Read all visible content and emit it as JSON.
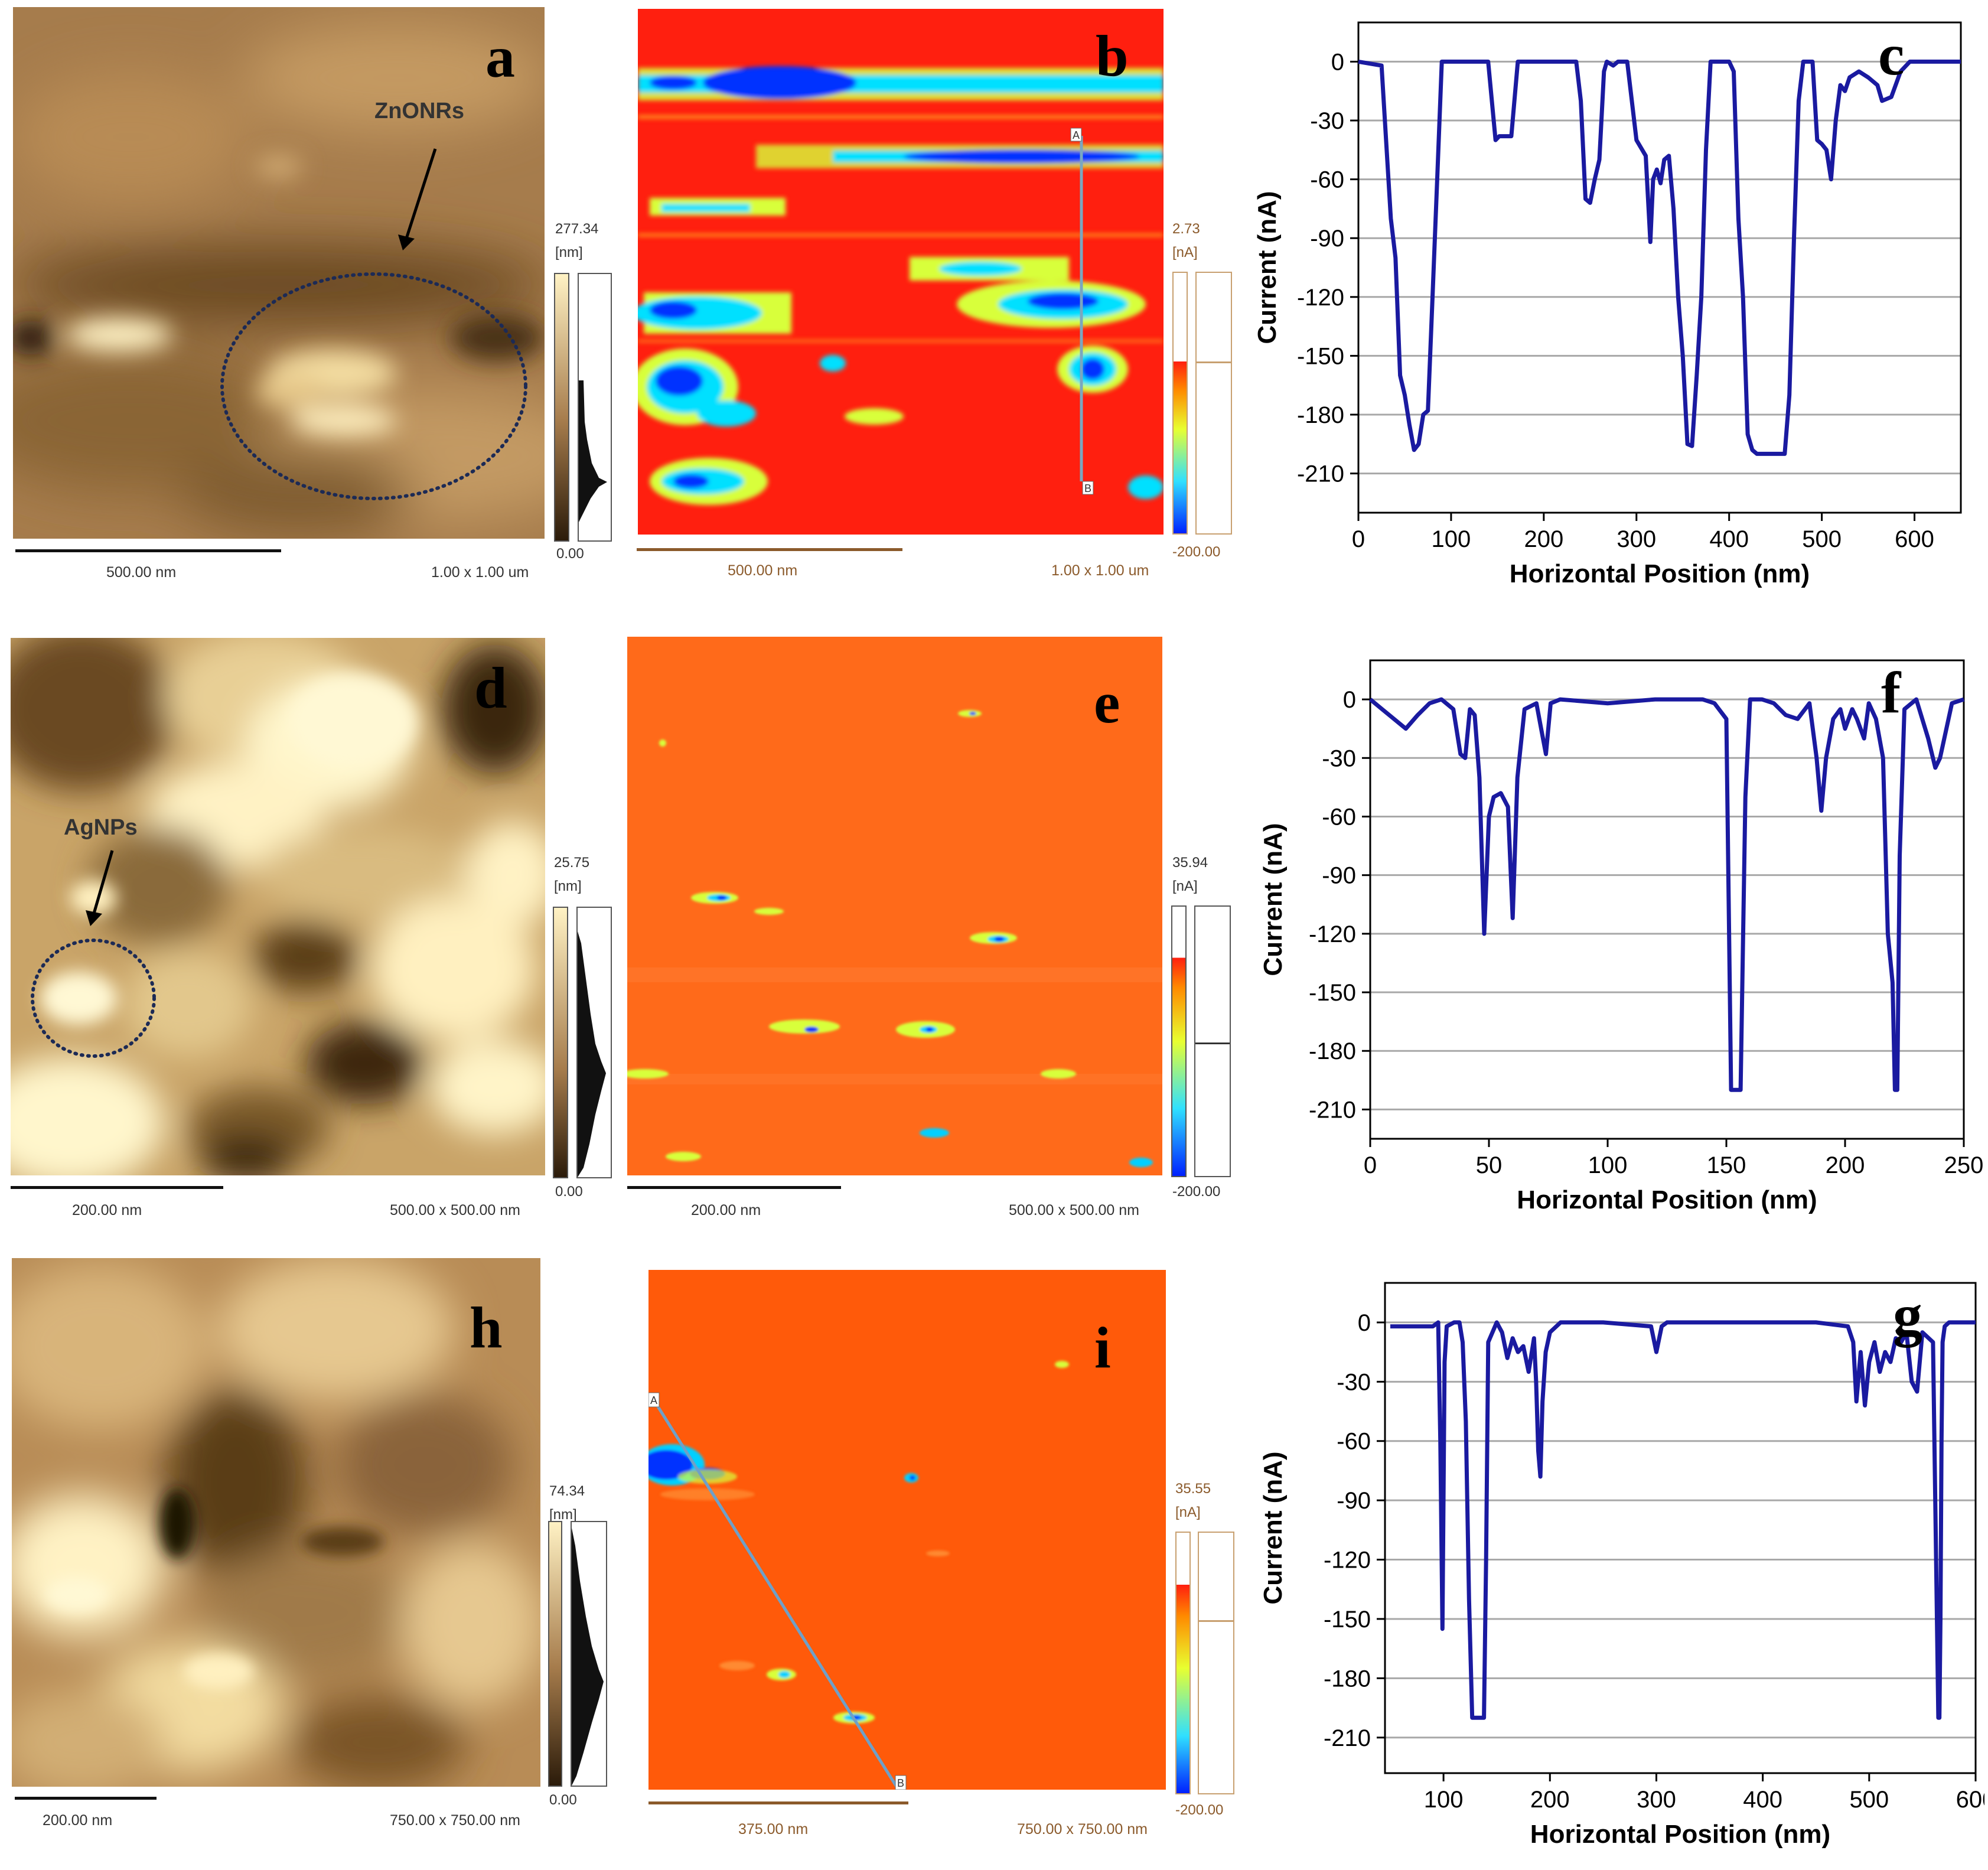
{
  "panels": {
    "a": {
      "letter": "a",
      "scalebar": "500.00 nm",
      "size": "1.00 x 1.00 um",
      "cmax": "277.34",
      "cunit": "[nm]",
      "cmin": "0.00",
      "annotation": "ZnONRs",
      "colors": [
        "#2b1b0a",
        "#a67c4c",
        "#fff2c4"
      ]
    },
    "b": {
      "letter": "b",
      "scalebar": "500.00 nm",
      "size": "1.00 x 1.00 um",
      "cmax": "2.73",
      "cunit": "[nA]",
      "cmin": "-200.00",
      "marker_a": "A",
      "marker_b": "B",
      "colors": [
        "#ff1f0f",
        "#0032ff",
        "#00e0ff",
        "#d8ff3a"
      ]
    },
    "d": {
      "letter": "d",
      "scalebar": "200.00 nm",
      "size": "500.00 x 500.00 nm",
      "cmax": "25.75",
      "cunit": "[nm]",
      "cmin": "0.00",
      "annotation": "AgNPs"
    },
    "e": {
      "letter": "e",
      "scalebar": "200.00 nm",
      "size": "500.00 x 500.00 nm",
      "cmax": "35.94",
      "cunit": "[nA]",
      "cmin": "-200.00",
      "colors": [
        "#ff6a1a"
      ]
    },
    "h": {
      "letter": "h",
      "scalebar": "200.00 nm",
      "size": "750.00 x 750.00 nm",
      "cmax": "74.34",
      "cunit": "[nm]",
      "cmin": "0.00"
    },
    "i": {
      "letter": "i",
      "scalebar": "375.00 nm",
      "size": "750.00 x 750.00 nm",
      "cmax": "35.55",
      "cunit": "[nA]",
      "cmin": "-200.00",
      "marker_a": "A",
      "marker_b": "B",
      "colors": [
        "#ff5a0a"
      ]
    }
  },
  "chart_data": [
    {
      "panel": "c",
      "type": "line",
      "letter": "c",
      "xlabel": "Horizontal Position (nm)",
      "ylabel": "Current (nA)",
      "xlim": [
        0,
        650
      ],
      "ylim": [
        -230,
        20
      ],
      "xticks": [
        0,
        100,
        200,
        300,
        400,
        500,
        600
      ],
      "yticks": [
        0,
        -30,
        -60,
        -90,
        -120,
        -150,
        -180,
        -210
      ],
      "grid": "horizontal",
      "line_color": "#1a1aa0",
      "x": [
        0,
        25,
        35,
        40,
        45,
        50,
        55,
        60,
        65,
        70,
        75,
        80,
        85,
        90,
        100,
        130,
        140,
        148,
        152,
        165,
        172,
        235,
        240,
        245,
        250,
        255,
        260,
        265,
        268,
        275,
        280,
        290,
        300,
        310,
        315,
        318,
        322,
        326,
        330,
        335,
        340,
        345,
        350,
        355,
        360,
        365,
        370,
        375,
        380,
        400,
        405,
        410,
        415,
        420,
        425,
        430,
        440,
        450,
        460,
        465,
        470,
        475,
        480,
        490,
        495,
        500,
        505,
        510,
        515,
        520,
        525,
        530,
        540,
        550,
        560,
        565,
        575,
        585,
        595,
        600,
        610,
        650
      ],
      "y": [
        0,
        -2,
        -80,
        -100,
        -160,
        -170,
        -185,
        -198,
        -195,
        -180,
        -178,
        -120,
        -60,
        0,
        0,
        0,
        0,
        -40,
        -38,
        -38,
        0,
        0,
        -20,
        -70,
        -72,
        -60,
        -50,
        -5,
        0,
        -2,
        0,
        0,
        -40,
        -48,
        -92,
        -60,
        -55,
        -62,
        -50,
        -48,
        -75,
        -120,
        -150,
        -195,
        -196,
        -160,
        -120,
        -45,
        0,
        0,
        -5,
        -80,
        -120,
        -190,
        -198,
        -200,
        -200,
        -200,
        -200,
        -170,
        -90,
        -20,
        0,
        0,
        -40,
        -42,
        -45,
        -60,
        -30,
        -12,
        -15,
        -8,
        -5,
        -8,
        -12,
        -20,
        -18,
        -5,
        0,
        0,
        0,
        0
      ]
    },
    {
      "panel": "f",
      "type": "line",
      "letter": "f",
      "xlabel": "Horizontal Position (nm)",
      "ylabel": "Current (nA)",
      "xlim": [
        0,
        250
      ],
      "ylim": [
        -225,
        20
      ],
      "xticks": [
        0,
        50,
        100,
        150,
        200,
        250
      ],
      "yticks": [
        0,
        -30,
        -60,
        -90,
        -120,
        -150,
        -180,
        -210
      ],
      "grid": "horizontal",
      "line_color": "#1a1aa0",
      "x": [
        0,
        5,
        10,
        15,
        20,
        25,
        30,
        35,
        38,
        40,
        42,
        44,
        46,
        48,
        50,
        52,
        55,
        58,
        60,
        62,
        65,
        70,
        72,
        74,
        76,
        80,
        100,
        120,
        140,
        145,
        150,
        152,
        154,
        156,
        158,
        160,
        165,
        170,
        175,
        180,
        185,
        188,
        190,
        192,
        195,
        198,
        200,
        203,
        205,
        208,
        210,
        213,
        216,
        218,
        220,
        221,
        222,
        223,
        225,
        230,
        235,
        238,
        240,
        245,
        250
      ],
      "y": [
        0,
        -5,
        -10,
        -15,
        -8,
        -2,
        0,
        -5,
        -28,
        -30,
        -5,
        -8,
        -40,
        -120,
        -60,
        -50,
        -48,
        -55,
        -112,
        -40,
        -5,
        -2,
        -15,
        -28,
        -2,
        0,
        -2,
        0,
        0,
        -2,
        -10,
        -200,
        -200,
        -200,
        -50,
        0,
        0,
        -2,
        -8,
        -10,
        -2,
        -30,
        -57,
        -30,
        -10,
        -5,
        -15,
        -5,
        -10,
        -20,
        -2,
        -10,
        -30,
        -120,
        -145,
        -200,
        -200,
        -80,
        -5,
        0,
        -20,
        -35,
        -30,
        -2,
        0
      ]
    },
    {
      "panel": "g",
      "type": "line",
      "letter": "g",
      "xlabel": "Horizontal Position (nm)",
      "ylabel": "Current (nA)",
      "xlim": [
        45,
        600
      ],
      "ylim": [
        -228,
        20
      ],
      "xticks": [
        100,
        200,
        300,
        400,
        500,
        600
      ],
      "yticks": [
        0,
        -30,
        -60,
        -90,
        -120,
        -150,
        -180,
        -210
      ],
      "grid": "horizontal",
      "line_color": "#1a1aa0",
      "x": [
        50,
        90,
        95,
        97,
        99,
        101,
        103,
        110,
        115,
        118,
        121,
        124,
        127,
        130,
        135,
        138,
        140,
        142,
        150,
        155,
        160,
        165,
        170,
        175,
        180,
        185,
        187,
        189,
        191,
        193,
        196,
        200,
        210,
        250,
        295,
        300,
        305,
        310,
        350,
        400,
        450,
        480,
        485,
        488,
        492,
        496,
        500,
        505,
        510,
        515,
        520,
        525,
        530,
        535,
        540,
        545,
        550,
        560,
        565,
        566,
        567,
        568,
        569,
        571,
        575,
        600
      ],
      "y": [
        -2,
        -2,
        0,
        -60,
        -155,
        -20,
        -2,
        0,
        0,
        -10,
        -50,
        -140,
        -200,
        -200,
        -200,
        -200,
        -120,
        -10,
        0,
        -5,
        -18,
        -8,
        -15,
        -12,
        -25,
        -8,
        -30,
        -65,
        -78,
        -40,
        -15,
        -5,
        0,
        0,
        -2,
        -15,
        -2,
        0,
        0,
        0,
        0,
        -2,
        -10,
        -40,
        -15,
        -42,
        -20,
        -10,
        -25,
        -15,
        -20,
        -8,
        -10,
        -5,
        -30,
        -35,
        -5,
        -10,
        -200,
        -200,
        -150,
        -60,
        -10,
        -2,
        0,
        0
      ]
    }
  ]
}
